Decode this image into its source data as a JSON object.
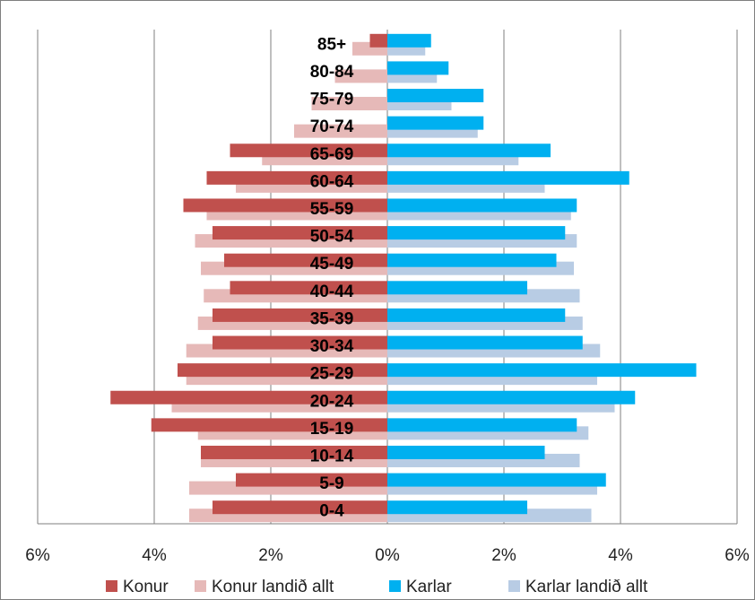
{
  "chart_data": {
    "type": "bar",
    "orientation": "horizontal-population-pyramid",
    "categories": [
      "0-4",
      "5-9",
      "10-14",
      "15-19",
      "20-24",
      "25-29",
      "30-34",
      "35-39",
      "40-44",
      "45-49",
      "50-54",
      "55-59",
      "60-64",
      "65-69",
      "70-74",
      "75-79",
      "80-84",
      "85+"
    ],
    "series": [
      {
        "name": "Konur",
        "side": "left",
        "color": "#C0504D",
        "values": [
          3.0,
          2.6,
          3.2,
          4.05,
          4.75,
          3.6,
          3.0,
          3.0,
          2.7,
          2.8,
          3.0,
          3.5,
          3.1,
          2.7,
          0.0,
          0.0,
          0.0,
          0.3
        ]
      },
      {
        "name": "Konur landið allt",
        "side": "left",
        "color": "#E6B9B8",
        "values": [
          3.4,
          3.4,
          3.2,
          3.25,
          3.7,
          3.45,
          3.45,
          3.25,
          3.15,
          3.2,
          3.3,
          3.1,
          2.6,
          2.15,
          1.6,
          1.3,
          0.9,
          0.6
        ]
      },
      {
        "name": "Karlar",
        "side": "right",
        "color": "#00B0F0",
        "values": [
          2.4,
          3.75,
          2.7,
          3.25,
          4.25,
          5.3,
          3.35,
          3.05,
          2.4,
          2.9,
          3.05,
          3.25,
          4.15,
          2.8,
          1.65,
          1.65,
          1.05,
          0.75
        ]
      },
      {
        "name": "Karlar landið allt",
        "side": "right",
        "color": "#B8CCE4",
        "values": [
          3.5,
          3.6,
          3.3,
          3.45,
          3.9,
          3.6,
          3.65,
          3.35,
          3.3,
          3.2,
          3.25,
          3.15,
          2.7,
          2.25,
          1.55,
          1.1,
          0.85,
          0.65
        ]
      }
    ],
    "xlim": [
      -6,
      6
    ],
    "xticks": [
      -6,
      -4,
      -2,
      0,
      2,
      4,
      6
    ],
    "xtick_labels": [
      "6%",
      "4%",
      "2%",
      "0%",
      "2%",
      "4%",
      "6%"
    ],
    "grid": "vertical",
    "legend_position": "bottom",
    "title": "",
    "xlabel": "",
    "ylabel": ""
  }
}
